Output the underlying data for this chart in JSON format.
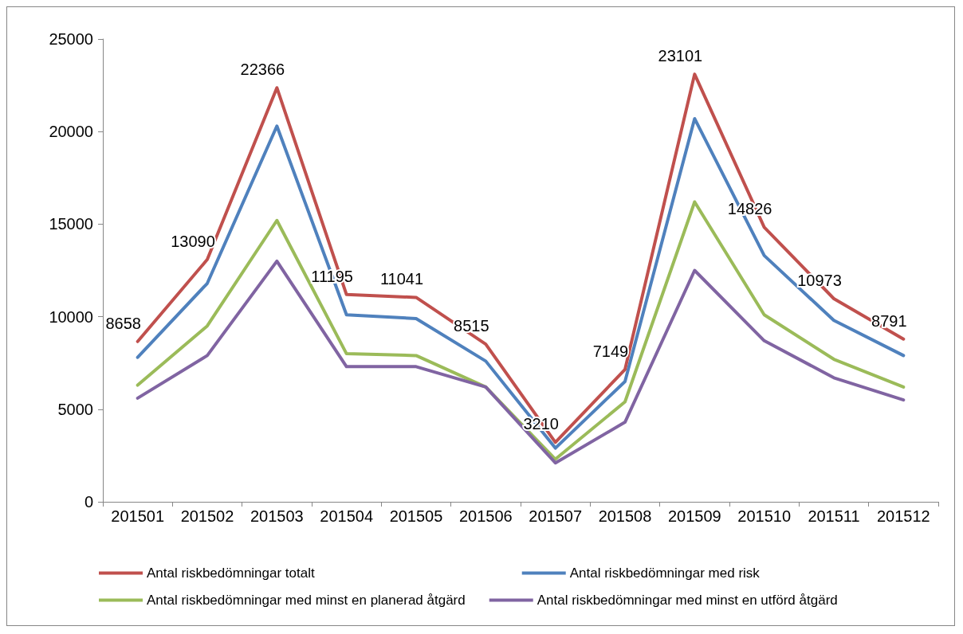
{
  "chart_data": {
    "type": "line",
    "categories": [
      "201501",
      "201502",
      "201503",
      "201504",
      "201505",
      "201506",
      "201507",
      "201508",
      "201509",
      "201510",
      "201511",
      "201512"
    ],
    "series": [
      {
        "name": "Antal riskbedömningar totalt",
        "color": "#c0504d",
        "values": [
          8658,
          13090,
          22366,
          11195,
          11041,
          8515,
          3210,
          7149,
          23101,
          14826,
          10973,
          8791
        ],
        "value_labels": [
          "8658",
          "13090",
          "22366",
          "11195",
          "11041",
          "8515",
          "3210",
          "7149",
          "23101",
          "14826",
          "10973",
          "8791"
        ]
      },
      {
        "name": "Antal riskbedömningar med risk",
        "color": "#4f81bd",
        "values": [
          7800,
          11800,
          20300,
          10100,
          9900,
          7600,
          2900,
          6500,
          20700,
          13300,
          9800,
          7900
        ]
      },
      {
        "name": "Antal riskbedömningar med minst en planerad åtgärd",
        "color": "#9bbb59",
        "values": [
          6300,
          9500,
          15200,
          8000,
          7900,
          6200,
          2300,
          5400,
          16200,
          10100,
          7700,
          6200
        ]
      },
      {
        "name": "Antal riskbedömningar med minst en utförd åtgärd",
        "color": "#8064a2",
        "values": [
          5600,
          7900,
          13000,
          7300,
          7300,
          6200,
          2100,
          4300,
          12500,
          8700,
          6700,
          5500
        ]
      }
    ],
    "ylim": [
      0,
      25000
    ],
    "yticks": [
      0,
      5000,
      10000,
      15000,
      20000,
      25000
    ],
    "grid": false,
    "legend": "bottom",
    "marker": "none",
    "line_style": "solid"
  }
}
